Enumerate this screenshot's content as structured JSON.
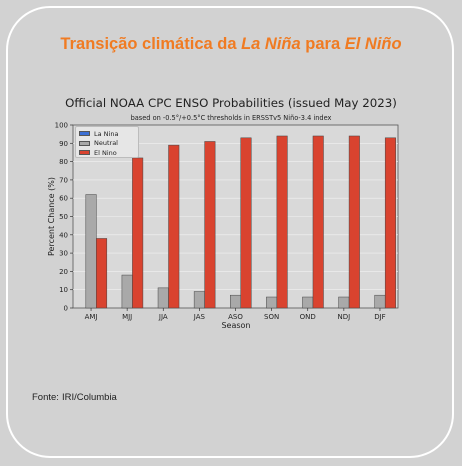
{
  "slide": {
    "title_prefix": "Transição climática da ",
    "title_la_nina": "La Niña",
    "title_middle": " para ",
    "title_el_nino": "El Niño",
    "source_label": "Fonte:",
    "source_value": "IRI/Columbia"
  },
  "colors": {
    "title": "#f07b22",
    "la_nina": "#3b6fd4",
    "neutral": "#a9a9a9",
    "el_nino": "#d9432f",
    "plot_bg": "#d9d9d9"
  },
  "chart_data": {
    "type": "bar",
    "title": "Official NOAA CPC ENSO Probabilities (issued May 2023)",
    "subtitle": "based on -0.5°/+0.5°C thresholds in ERSSTv5 Niño-3.4 index",
    "xlabel": "Season",
    "ylabel": "Percent Chance (%)",
    "ylim": [
      0,
      100
    ],
    "yticks": [
      0,
      10,
      20,
      30,
      40,
      50,
      60,
      70,
      80,
      90,
      100
    ],
    "grid": true,
    "legend_position": "top-left",
    "categories": [
      "AMJ",
      "MJJ",
      "JJA",
      "JAS",
      "ASO",
      "SON",
      "OND",
      "NDJ",
      "DJF"
    ],
    "series": [
      {
        "name": "La Nina",
        "values": [
          0,
          0,
          0,
          0,
          0,
          0,
          0,
          0,
          0
        ]
      },
      {
        "name": "Neutral",
        "values": [
          62,
          18,
          11,
          9,
          7,
          6,
          6,
          6,
          7
        ]
      },
      {
        "name": "El Nino",
        "values": [
          38,
          82,
          89,
          91,
          93,
          94,
          94,
          94,
          93
        ]
      }
    ]
  }
}
